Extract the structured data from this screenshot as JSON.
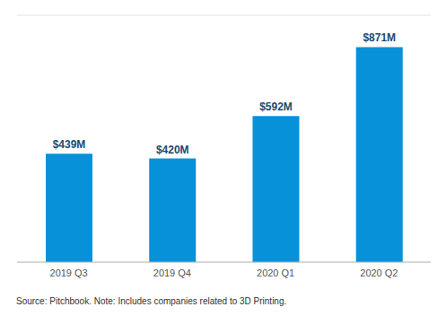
{
  "chart_data": {
    "type": "bar",
    "categories": [
      "2019 Q3",
      "2019 Q4",
      "2020 Q1",
      "2020 Q2"
    ],
    "values": [
      439,
      420,
      592,
      871
    ],
    "value_labels": [
      "$439M",
      "$420M",
      "$592M",
      "$871M"
    ],
    "color": "#0791d9",
    "ylim": [
      0,
      1000
    ],
    "yticks": [
      0,
      200,
      400,
      600,
      800,
      1000
    ],
    "grid": true,
    "data_labels": true,
    "tick_labels": "x",
    "annotation": "Source: Pitchbook. Note: Includes companies related to 3D Printing."
  }
}
